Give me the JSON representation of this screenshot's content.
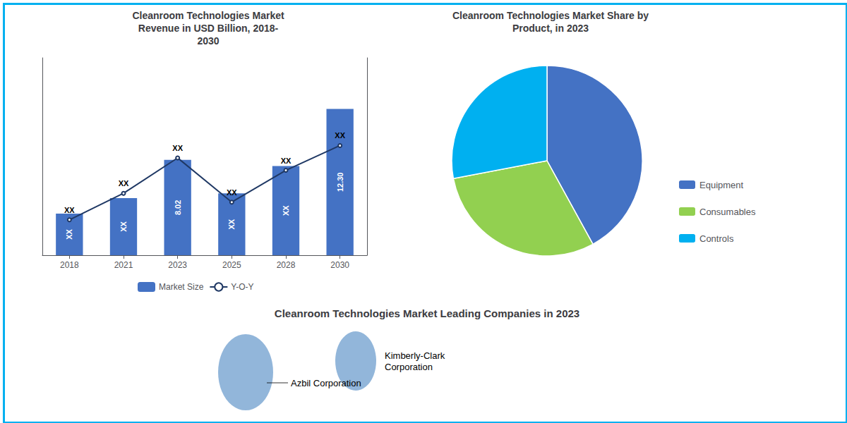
{
  "chart_data": [
    {
      "type": "bar",
      "title": "Cleanroom Technologies Market\nRevenue in USD Billion, 2018-\n2030",
      "categories": [
        "2018",
        "2021",
        "2023",
        "2025",
        "2028",
        "2030"
      ],
      "series": [
        {
          "name": "Market Size",
          "type": "bar",
          "color": "#4472C4",
          "values": [
            3.5,
            4.8,
            8.02,
            5.2,
            7.5,
            12.3
          ],
          "value_labels": [
            "XX",
            "XX",
            "8.02",
            "XX",
            "XX",
            "12.30"
          ]
        },
        {
          "name": "Y-O-Y",
          "type": "line",
          "axis": "y2",
          "color": "#1F3864",
          "values": [
            2.0,
            3.5,
            5.5,
            3.0,
            4.8,
            6.2
          ],
          "value_labels": [
            "XX",
            "XX",
            "XX",
            "XX",
            "XX",
            "XX"
          ]
        }
      ],
      "ylim": [
        0,
        16.605
      ],
      "y2lim": [
        0,
        11.16
      ],
      "grid": false,
      "legend": "bottom",
      "data_labels": true,
      "tick_labels": "x"
    },
    {
      "type": "pie",
      "title": "Cleanroom Technologies Market Share by\nProduct, in 2023",
      "categories": [
        "Equipment",
        "Consumables",
        "Controls"
      ],
      "values": [
        42,
        30,
        28
      ],
      "colors": [
        "#4472C4",
        "#92D050",
        "#00B0F0"
      ],
      "legend": "right"
    },
    {
      "type": "bubble",
      "title": "Cleanroom Technologies Market Leading Companies in 2023",
      "annotations": [
        "Azbil Corporation",
        "Kimberly-Clark\nCorporation"
      ],
      "color": "#7FA9D4"
    }
  ]
}
